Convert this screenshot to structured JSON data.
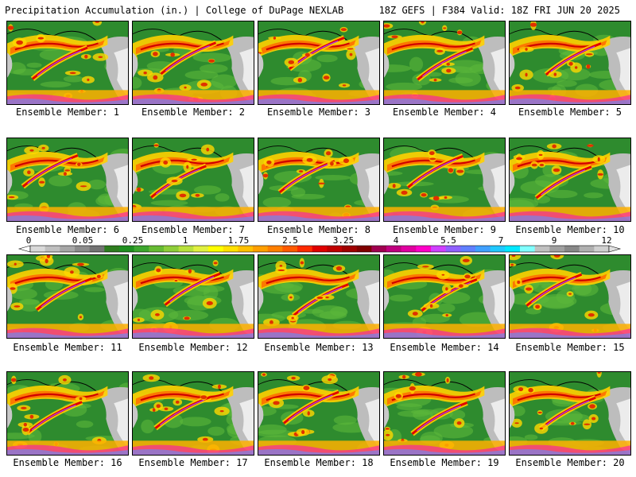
{
  "header": {
    "left_title": "Precipitation Accumulation (in.) | College of DuPage NEXLAB",
    "right_title": "18Z GEFS | F384 Valid: 18Z FRI JUN 20 2025"
  },
  "members": [
    {
      "label": "Ensemble Member: 1"
    },
    {
      "label": "Ensemble Member: 2"
    },
    {
      "label": "Ensemble Member: 3"
    },
    {
      "label": "Ensemble Member: 4"
    },
    {
      "label": "Ensemble Member: 5"
    },
    {
      "label": "Ensemble Member: 6"
    },
    {
      "label": "Ensemble Member: 7"
    },
    {
      "label": "Ensemble Member: 8"
    },
    {
      "label": "Ensemble Member: 9"
    },
    {
      "label": "Ensemble Member: 10"
    },
    {
      "label": "Ensemble Member: 11"
    },
    {
      "label": "Ensemble Member: 12"
    },
    {
      "label": "Ensemble Member: 13"
    },
    {
      "label": "Ensemble Member: 14"
    },
    {
      "label": "Ensemble Member: 15"
    },
    {
      "label": "Ensemble Member: 16"
    },
    {
      "label": "Ensemble Member: 17"
    },
    {
      "label": "Ensemble Member: 18"
    },
    {
      "label": "Ensemble Member: 19"
    },
    {
      "label": "Ensemble Member: 20"
    }
  ],
  "colorbar": {
    "tick_labels": [
      "0",
      "0.05",
      "0.25",
      "1",
      "1.75",
      "2.5",
      "3.25",
      "4",
      "5.5",
      "7",
      "9",
      "12"
    ],
    "colors": [
      "#d9d9d9",
      "#bfbfbf",
      "#a6a6a6",
      "#8c8c8c",
      "#737373",
      "#2e7d1f",
      "#1f8f1f",
      "#3da62e",
      "#66bb33",
      "#8fce3a",
      "#b8e03c",
      "#e0f040",
      "#ffff00",
      "#ffe000",
      "#ffc000",
      "#ff9f00",
      "#ff7f00",
      "#ff5a00",
      "#ff2a00",
      "#e00000",
      "#c00000",
      "#a00000",
      "#800000",
      "#a00050",
      "#c0007f",
      "#e000a0",
      "#ff00c8",
      "#d040ff",
      "#9060ff",
      "#6080ff",
      "#40a0ff",
      "#20c8ff",
      "#00e8ff",
      "#80ffff",
      "#c0c0c0",
      "#a0a0a0",
      "#888888",
      "#b0b0b0",
      "#d0d0d0"
    ]
  }
}
